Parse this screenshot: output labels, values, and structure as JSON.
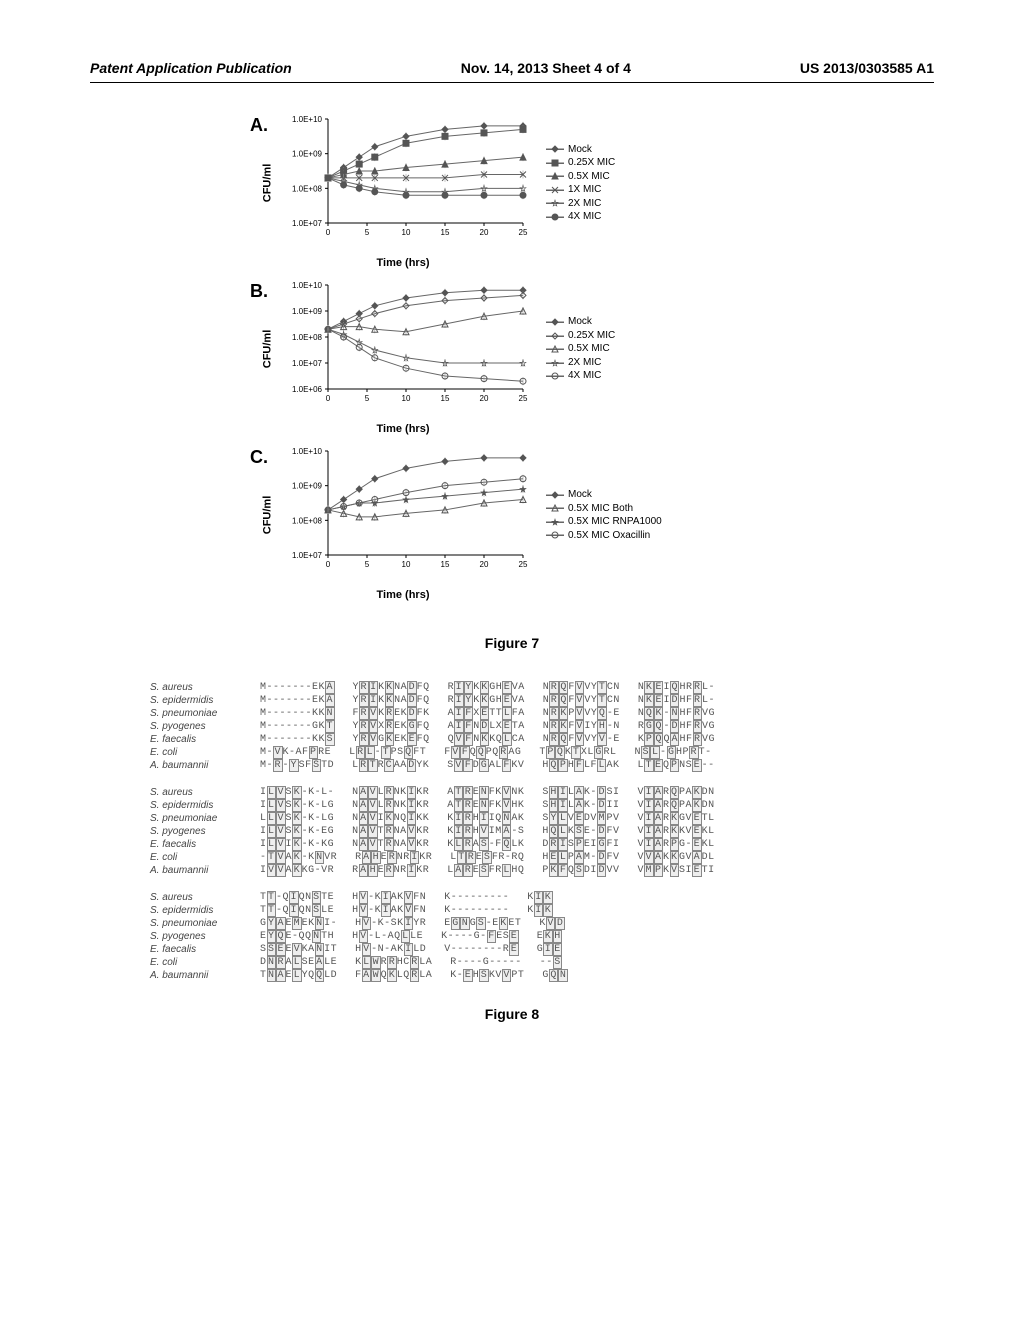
{
  "header": {
    "left": "Patent Application Publication",
    "center": "Nov. 14, 2013  Sheet 4 of 4",
    "right": "US 2013/0303585 A1"
  },
  "figure7": {
    "caption": "Figure 7",
    "y_label": "CFU/ml",
    "x_label": "Time (hrs)",
    "x_ticks": [
      0,
      5,
      10,
      15,
      20,
      25
    ],
    "panels": {
      "A": {
        "label": "A.",
        "y_ticks": [
          "1.0E+10",
          "1.0E+09",
          "1.0E+08",
          "1.0E+07"
        ],
        "ylim": [
          7,
          10
        ],
        "legend": [
          {
            "label": "Mock",
            "marker": "diamond",
            "color": "#555555",
            "fill": true
          },
          {
            "label": "0.25X MIC",
            "marker": "square",
            "color": "#555555",
            "fill": true
          },
          {
            "label": "0.5X MIC",
            "marker": "triangle",
            "color": "#555555",
            "fill": true
          },
          {
            "label": "1X MIC",
            "marker": "x",
            "color": "#555555",
            "fill": false
          },
          {
            "label": "2X MIC",
            "marker": "star",
            "color": "#555555",
            "fill": false
          },
          {
            "label": "4X MIC",
            "marker": "circle",
            "color": "#555555",
            "fill": true
          }
        ],
        "series": [
          {
            "name": "Mock",
            "points": [
              [
                0,
                8.3
              ],
              [
                2,
                8.6
              ],
              [
                4,
                8.9
              ],
              [
                6,
                9.2
              ],
              [
                10,
                9.5
              ],
              [
                15,
                9.7
              ],
              [
                20,
                9.8
              ],
              [
                25,
                9.8
              ]
            ]
          },
          {
            "name": "0.25X MIC",
            "points": [
              [
                0,
                8.3
              ],
              [
                2,
                8.5
              ],
              [
                4,
                8.7
              ],
              [
                6,
                8.9
              ],
              [
                10,
                9.3
              ],
              [
                15,
                9.5
              ],
              [
                20,
                9.6
              ],
              [
                25,
                9.7
              ]
            ]
          },
          {
            "name": "0.5X MIC",
            "points": [
              [
                0,
                8.3
              ],
              [
                2,
                8.4
              ],
              [
                4,
                8.5
              ],
              [
                6,
                8.5
              ],
              [
                10,
                8.6
              ],
              [
                15,
                8.7
              ],
              [
                20,
                8.8
              ],
              [
                25,
                8.9
              ]
            ]
          },
          {
            "name": "1X MIC",
            "points": [
              [
                0,
                8.3
              ],
              [
                2,
                8.3
              ],
              [
                4,
                8.3
              ],
              [
                6,
                8.3
              ],
              [
                10,
                8.3
              ],
              [
                15,
                8.3
              ],
              [
                20,
                8.4
              ],
              [
                25,
                8.4
              ]
            ]
          },
          {
            "name": "2X MIC",
            "points": [
              [
                0,
                8.3
              ],
              [
                2,
                8.2
              ],
              [
                4,
                8.1
              ],
              [
                6,
                8.0
              ],
              [
                10,
                7.9
              ],
              [
                15,
                7.9
              ],
              [
                20,
                8.0
              ],
              [
                25,
                8.0
              ]
            ]
          },
          {
            "name": "4X MIC",
            "points": [
              [
                0,
                8.3
              ],
              [
                2,
                8.1
              ],
              [
                4,
                8.0
              ],
              [
                6,
                7.9
              ],
              [
                10,
                7.8
              ],
              [
                15,
                7.8
              ],
              [
                20,
                7.8
              ],
              [
                25,
                7.8
              ]
            ]
          }
        ]
      },
      "B": {
        "label": "B.",
        "y_ticks": [
          "1.0E+10",
          "1.0E+09",
          "1.0E+08",
          "1.0E+07",
          "1.0E+06"
        ],
        "ylim": [
          6,
          10
        ],
        "legend": [
          {
            "label": "Mock",
            "marker": "diamond",
            "color": "#555555",
            "fill": true
          },
          {
            "label": "0.25X MIC",
            "marker": "diamond",
            "color": "#555555",
            "fill": false
          },
          {
            "label": "0.5X MIC",
            "marker": "triangle",
            "color": "#555555",
            "fill": false
          },
          {
            "label": "2X MIC",
            "marker": "star",
            "color": "#555555",
            "fill": false
          },
          {
            "label": "4X MIC",
            "marker": "circle",
            "color": "#555555",
            "fill": false
          }
        ],
        "series": [
          {
            "name": "Mock",
            "points": [
              [
                0,
                8.3
              ],
              [
                2,
                8.6
              ],
              [
                4,
                8.9
              ],
              [
                6,
                9.2
              ],
              [
                10,
                9.5
              ],
              [
                15,
                9.7
              ],
              [
                20,
                9.8
              ],
              [
                25,
                9.8
              ]
            ]
          },
          {
            "name": "0.25X MIC",
            "points": [
              [
                0,
                8.3
              ],
              [
                2,
                8.5
              ],
              [
                4,
                8.7
              ],
              [
                6,
                8.9
              ],
              [
                10,
                9.2
              ],
              [
                15,
                9.4
              ],
              [
                20,
                9.5
              ],
              [
                25,
                9.6
              ]
            ]
          },
          {
            "name": "0.5X MIC",
            "points": [
              [
                0,
                8.3
              ],
              [
                2,
                8.4
              ],
              [
                4,
                8.4
              ],
              [
                6,
                8.3
              ],
              [
                10,
                8.2
              ],
              [
                15,
                8.5
              ],
              [
                20,
                8.8
              ],
              [
                25,
                9.0
              ]
            ]
          },
          {
            "name": "2X MIC",
            "points": [
              [
                0,
                8.3
              ],
              [
                2,
                8.1
              ],
              [
                4,
                7.8
              ],
              [
                6,
                7.5
              ],
              [
                10,
                7.2
              ],
              [
                15,
                7.0
              ],
              [
                20,
                7.0
              ],
              [
                25,
                7.0
              ]
            ]
          },
          {
            "name": "4X MIC",
            "points": [
              [
                0,
                8.3
              ],
              [
                2,
                8.0
              ],
              [
                4,
                7.6
              ],
              [
                6,
                7.2
              ],
              [
                10,
                6.8
              ],
              [
                15,
                6.5
              ],
              [
                20,
                6.4
              ],
              [
                25,
                6.3
              ]
            ]
          }
        ]
      },
      "C": {
        "label": "C.",
        "y_ticks": [
          "1.0E+10",
          "1.0E+09",
          "1.0E+08",
          "1.0E+07"
        ],
        "ylim": [
          7,
          10
        ],
        "legend": [
          {
            "label": "Mock",
            "marker": "diamond",
            "color": "#555555",
            "fill": true
          },
          {
            "label": "0.5X MIC Both",
            "marker": "triangle",
            "color": "#555555",
            "fill": false
          },
          {
            "label": "0.5X MIC RNPA1000",
            "marker": "star",
            "color": "#555555",
            "fill": true
          },
          {
            "label": "0.5X MIC Oxacillin",
            "marker": "circle",
            "color": "#555555",
            "fill": false
          }
        ],
        "series": [
          {
            "name": "Mock",
            "points": [
              [
                0,
                8.3
              ],
              [
                2,
                8.6
              ],
              [
                4,
                8.9
              ],
              [
                6,
                9.2
              ],
              [
                10,
                9.5
              ],
              [
                15,
                9.7
              ],
              [
                20,
                9.8
              ],
              [
                25,
                9.8
              ]
            ]
          },
          {
            "name": "0.5X MIC Both",
            "points": [
              [
                0,
                8.3
              ],
              [
                2,
                8.2
              ],
              [
                4,
                8.1
              ],
              [
                6,
                8.1
              ],
              [
                10,
                8.2
              ],
              [
                15,
                8.3
              ],
              [
                20,
                8.5
              ],
              [
                25,
                8.6
              ]
            ]
          },
          {
            "name": "0.5X MIC RNPA1000",
            "points": [
              [
                0,
                8.3
              ],
              [
                2,
                8.4
              ],
              [
                4,
                8.5
              ],
              [
                6,
                8.5
              ],
              [
                10,
                8.6
              ],
              [
                15,
                8.7
              ],
              [
                20,
                8.8
              ],
              [
                25,
                8.9
              ]
            ]
          },
          {
            "name": "0.5X MIC Oxacillin",
            "points": [
              [
                0,
                8.3
              ],
              [
                2,
                8.4
              ],
              [
                4,
                8.5
              ],
              [
                6,
                8.6
              ],
              [
                10,
                8.8
              ],
              [
                15,
                9.0
              ],
              [
                20,
                9.1
              ],
              [
                25,
                9.2
              ]
            ]
          }
        ]
      }
    }
  },
  "figure8": {
    "caption": "Figure 8",
    "species": [
      "S. aureus",
      "S. epidermidis",
      "S. pneumoniae",
      "S. pyogenes",
      "E. faecalis",
      "E. coli",
      "A. baumannii"
    ],
    "blocks": [
      {
        "segments": [
          "M-------EKA|M-------EKA|M-------KKN|M-------GKT|M-------KKS|M-VK-AFPRE|M-R-YSFSTD",
          "YRIKKNADFQ|YRIKKNADFQ|FRVKREKDFK|YRVXREKGFQ|YRVGKEKEFQ|LRL-TPSQFT|LRTRCAADYK",
          "RIYKKGHEVA|RIYKKGHEVA|AIFXETTLFA|AIFNDLXETA|QVFNKKQLCA|FVFQQPQRAG|SVFDGALFKV",
          "NRQFVVYTCN|NRQFVVYTCN|NRKPVVYQ-E|NRKFVIYH-N|NRQFVVYV-E|TPQKTXLGRL|HQPHFLFLAK",
          "NKEIQHRRL-|NKEIDHFRL-|NQK-NHFRVG|RGQ-DHFRVG|KPQQAHFRVG|NSL-GHPRT-|LTEQPNSE--"
        ]
      },
      {
        "segments": [
          "ILVSK-K-L-|ILVSK-K-LG|LLVSK-K-LG|ILVSK-K-EG|ILVIK-K-KG|-TVAK-KNVR|IVVAKKG-VR",
          "NAVLRNKIKR|NAVLRNKIKR|NAVIKNQIKK|NAVTRNAVKR|NAVTRNAVKR|RAHERNRIKR|RAHERNRIKR",
          "ATRENFKVNK|ATRENFKVHK|KIRHIIQNAK|KIRHVIMA-S|KLRAS-FQLK|LTRESFR-RQ|LARESFRLHQ",
          "SHILAK-DSI|SHILAK-DII|SYLVEDVMPV|HQLKSE-DFV|DRISPEIGFI|HELPAM-DFV|PKFQSDIDVV",
          "VIARQPAKDN|VIARQPAKDN|VIARKGVETL|VIARKKVEKL|VIARPG-EKL|VVAKKGVADL|VMPKVSIETI"
        ]
      },
      {
        "segments": [
          "TT-QIQNSTE|TT-QIQNSLE|GYAEMEKNI-|EYQE-QQNTH|SSEEVKANIT|DNRALSEALE|TNAELYQQLD",
          "HV-KIAKVFN|HV-KIAKVFN|HV-K-SKIYR|HV-L-AQLLE|HV-N-AKILD|KLWRRHCRLA|FAWQKLQRLA",
          "K---------|K---------|EGNGS-EKET|K----G-FESE|V--------RE|R----G-----|K-EHSKVVPT",
          "KIK|KIK|KVD|EKH|GIE|--S|GQN"
        ]
      }
    ]
  },
  "colors": {
    "text": "#000000",
    "axis": "#000000",
    "series_line": "#666666",
    "background": "#ffffff"
  }
}
